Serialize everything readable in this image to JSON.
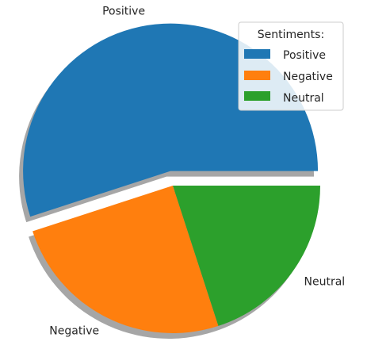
{
  "chart_data": {
    "type": "pie",
    "categories": [
      "Positive",
      "Negative",
      "Neutral"
    ],
    "values": [
      55,
      25,
      20
    ],
    "explode": [
      0.1,
      0,
      0
    ],
    "shadow": true,
    "start_angle_deg": 0,
    "counterclock": true,
    "colors": [
      "#1f77b4",
      "#ff7f0e",
      "#2ca02c"
    ],
    "legend": {
      "title": "Sentiments:",
      "placement": "top-right",
      "entries": [
        "Positive",
        "Negative",
        "Neutral"
      ]
    }
  }
}
